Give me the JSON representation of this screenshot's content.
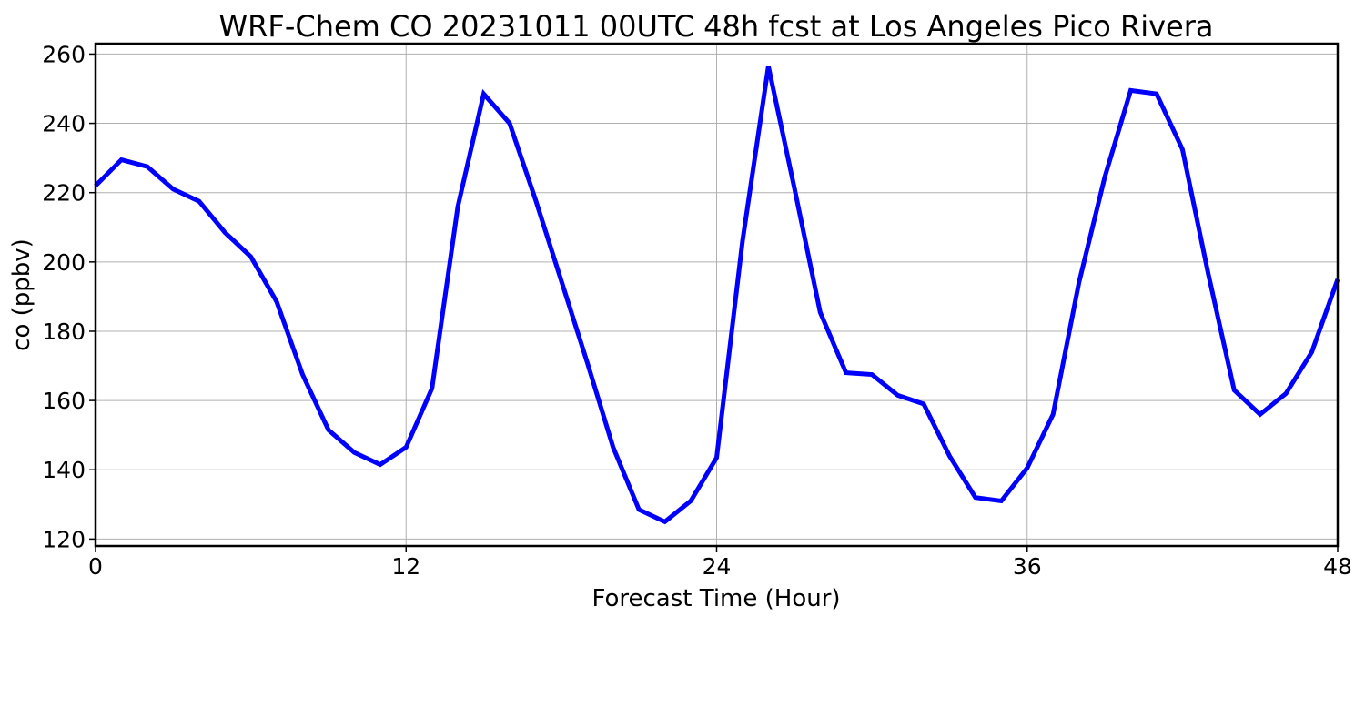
{
  "chart_data": {
    "type": "line",
    "title": "WRF-Chem CO  20231011 00UTC 48h fcst at Los Angeles Pico Rivera",
    "xlabel": "Forecast Time (Hour)",
    "ylabel": "co  (ppbv)",
    "xlim": [
      0,
      48
    ],
    "ylim": [
      118,
      263
    ],
    "xticks": [
      0,
      12,
      24,
      36,
      48
    ],
    "yticks": [
      120,
      140,
      160,
      180,
      200,
      220,
      240,
      260
    ],
    "grid": true,
    "line_color": "#0000ff",
    "series": [
      {
        "x": [
          0,
          1,
          2,
          3,
          4,
          5,
          6,
          7,
          8,
          9,
          10,
          11,
          12,
          13,
          14,
          15,
          16,
          17,
          18,
          19,
          20,
          21,
          22,
          23,
          24,
          25,
          26,
          27,
          28,
          29,
          30,
          31,
          32,
          33,
          34,
          35,
          36,
          37,
          38,
          39,
          40,
          41,
          42,
          43,
          44,
          45,
          46,
          47,
          48
        ],
        "values": [
          222,
          229.5,
          227.5,
          221,
          217.5,
          208.5,
          201.5,
          188.5,
          167.5,
          151.5,
          145,
          141.5,
          146.5,
          163.5,
          216,
          248.5,
          240,
          218,
          194.5,
          171,
          146.5,
          128.5,
          125,
          131,
          143.5,
          206,
          256.5,
          221.5,
          185.5,
          168,
          167.5,
          161.5,
          159,
          144,
          132,
          131,
          140.5,
          156,
          194,
          224.5,
          249.5,
          248.5,
          232.5,
          196.5,
          163,
          156,
          162,
          174,
          195
        ]
      }
    ]
  }
}
